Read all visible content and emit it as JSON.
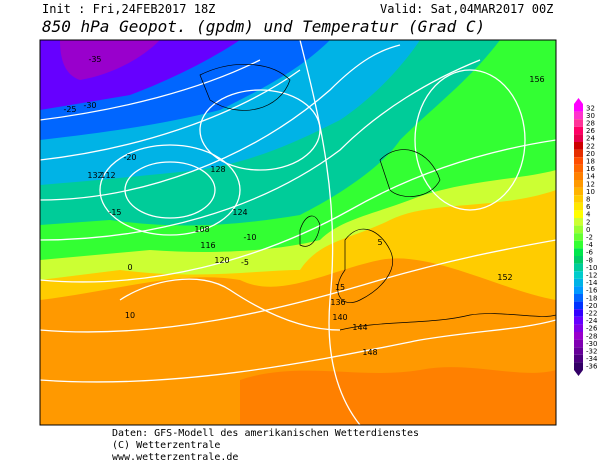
{
  "header": {
    "init": "Init : Fri,24FEB2017 18Z",
    "valid": "Valid: Sat,04MAR2017 00Z",
    "title": "850 hPa Geopot. (gpdm) und Temperatur (Grad C)"
  },
  "legend": {
    "labels": [
      "32",
      "30",
      "28",
      "26",
      "24",
      "22",
      "20",
      "18",
      "16",
      "14",
      "12",
      "10",
      "8",
      "6",
      "4",
      "2",
      "0",
      "-2",
      "-4",
      "-6",
      "-8",
      "-10",
      "-12",
      "-14",
      "-16",
      "-18",
      "-20",
      "-22",
      "-24",
      "-26",
      "-28",
      "-30",
      "-32",
      "-34",
      "-36"
    ],
    "colors": [
      "#ff00ff",
      "#ff33cc",
      "#ff3399",
      "#ff0066",
      "#e6004d",
      "#cc0000",
      "#e62e00",
      "#ff4d00",
      "#ff6600",
      "#ff8000",
      "#ff9900",
      "#ffb300",
      "#ffcc00",
      "#ffe600",
      "#ffff00",
      "#ccff33",
      "#99ff33",
      "#66ff33",
      "#33ff33",
      "#00e64d",
      "#00cc66",
      "#00cc99",
      "#00cccc",
      "#00b3e6",
      "#0099ff",
      "#0066ff",
      "#0033ff",
      "#3300ff",
      "#6600ff",
      "#8000e6",
      "#9900cc",
      "#8000b3",
      "#660099",
      "#4d0080",
      "#330066"
    ]
  },
  "map": {
    "labels": [
      "-35",
      "-30",
      "-25",
      "-20",
      "-15",
      "-10",
      "-5",
      "0",
      "5",
      "10",
      "15",
      "124",
      "128",
      "132",
      "136",
      "140",
      "144",
      "148",
      "152",
      "156",
      "120",
      "112",
      "108",
      "116"
    ]
  },
  "footer": {
    "line1": "Daten: GFS-Modell des amerikanischen Wetterdienstes",
    "line2": "(C) Wetterzentrale",
    "line3": "www.wetterzentrale.de"
  }
}
